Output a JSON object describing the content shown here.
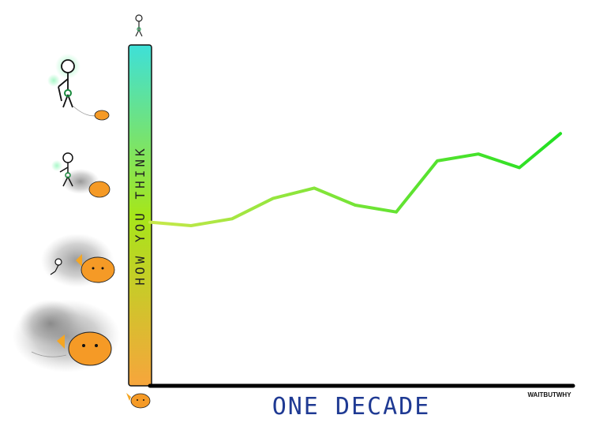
{
  "chart_data": {
    "type": "line",
    "ylabel": "HOW YOU THINK",
    "xlabel": "ONE DECADE",
    "credit": "WAITBUTWHY",
    "ylim": [
      0,
      100
    ],
    "xlim": [
      0,
      10
    ],
    "grid": false,
    "series": [
      {
        "x": [
          0,
          1,
          2,
          3,
          4,
          5,
          6,
          7,
          8,
          9,
          10
        ],
        "values": [
          48,
          47,
          49,
          55,
          58,
          53,
          51,
          66,
          68,
          64,
          74
        ]
      }
    ],
    "colors": {
      "line_start": "#c8e84a",
      "line_end": "#22e022",
      "bar_top": "#3ee0d8",
      "bar_mid": "#a6e61a",
      "bar_bottom": "#f7a53c",
      "xlabel": "#1f3a93",
      "axis": "#000000"
    }
  }
}
